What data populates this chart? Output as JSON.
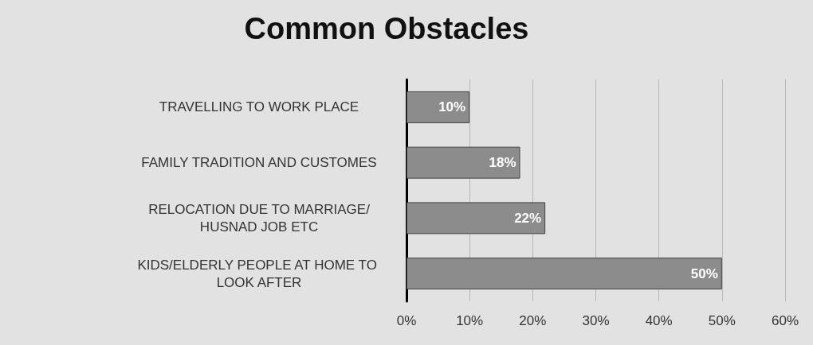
{
  "chart_data": {
    "type": "bar",
    "orientation": "horizontal",
    "title": "Common Obstacles",
    "categories": [
      "TRAVELLING TO WORK PLACE",
      "FAMILY TRADITION AND CUSTOMES",
      "RELOCATION DUE TO MARRIAGE/HUSNAD JOB ETC",
      "KIDS/ELDERLY PEOPLE AT HOME TO LOOK AFTER"
    ],
    "values": [
      10,
      18,
      22,
      50
    ],
    "color": "#8c8c8c",
    "value_labels": [
      "10%",
      "18%",
      "22%",
      "50%"
    ],
    "xlim": [
      0,
      60
    ],
    "xticks": [
      {
        "value": 0,
        "label": "0%"
      },
      {
        "value": 10,
        "label": "10%"
      },
      {
        "value": 20,
        "label": "20%"
      },
      {
        "value": 30,
        "label": "30%"
      },
      {
        "value": 40,
        "label": "40%"
      },
      {
        "value": 50,
        "label": "50%"
      },
      {
        "value": 60,
        "label": "60%"
      }
    ],
    "grid": "x"
  }
}
